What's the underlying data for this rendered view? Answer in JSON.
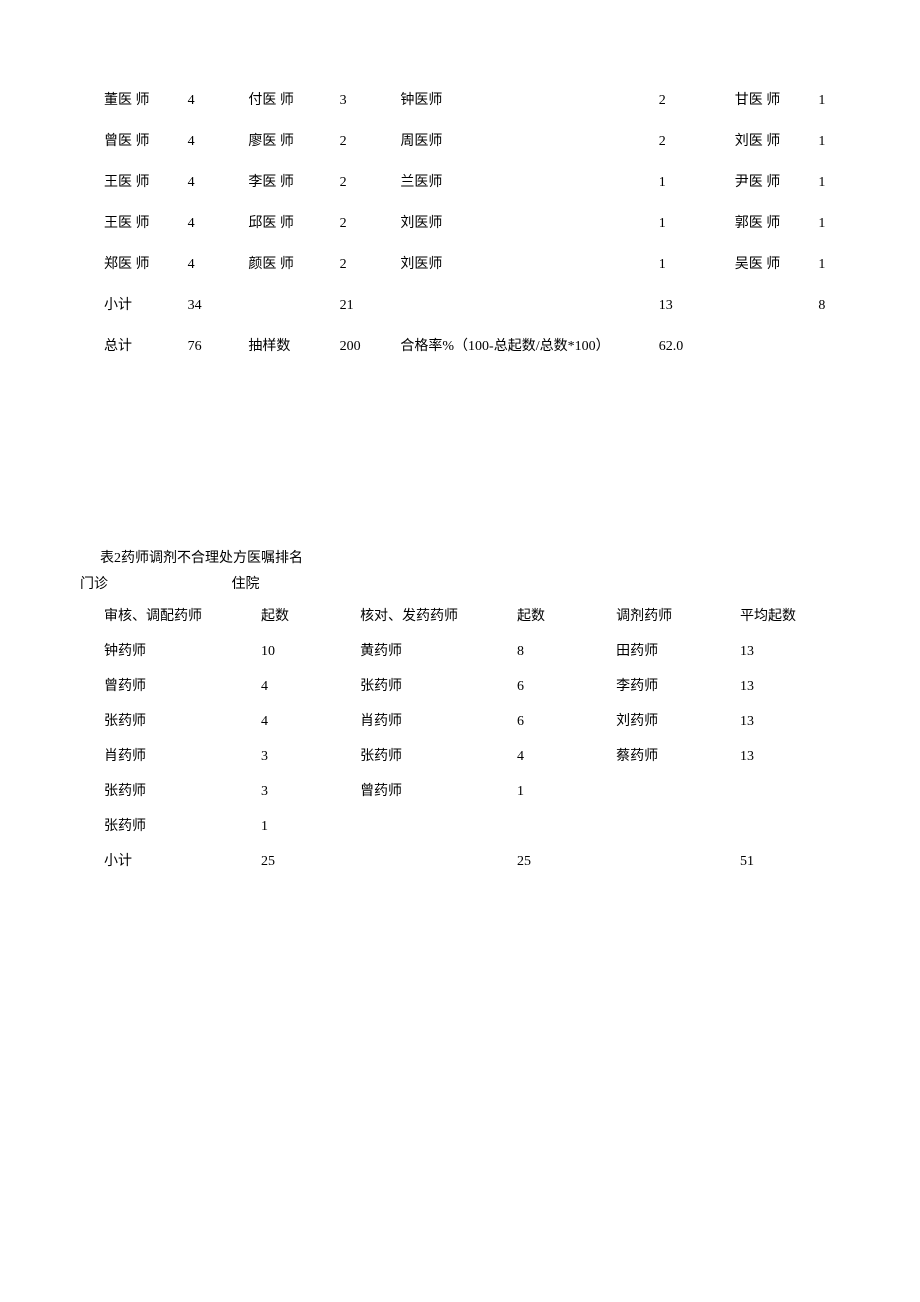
{
  "table1": {
    "rows": [
      [
        "董医 师",
        "4",
        "付医 师",
        "3",
        "钟医师",
        "2",
        "甘医 师",
        "1"
      ],
      [
        "曾医 师",
        "4",
        "廖医 师",
        "2",
        "周医师",
        "2",
        "刘医 师",
        "1"
      ],
      [
        "王医 师",
        "4",
        "李医 师",
        "2",
        "兰医师",
        "1",
        "尹医 师",
        "1"
      ],
      [
        "王医 师",
        "4",
        "邱医 师",
        "2",
        "刘医师",
        "1",
        "郭医 师",
        "1"
      ],
      [
        "郑医 师",
        "4",
        "颜医 师",
        "2",
        "刘医师",
        "1",
        "吴医 师",
        "1"
      ],
      [
        "小计",
        "34",
        "",
        "21",
        "",
        "13",
        "",
        "8"
      ]
    ],
    "total_row": {
      "label": "总计",
      "total": "76",
      "sample_label": "抽样数",
      "sample": "200",
      "rate_label": "合格率%（100-总起数/总数*100）",
      "rate": "62.0"
    }
  },
  "table2": {
    "caption": "表2药师调剂不合理处方医嘱排名",
    "header_groups": {
      "left": "门诊",
      "right": "住院"
    },
    "columns": [
      "审核、调配药师",
      "起数",
      "核对、发药药师",
      "起数",
      "调剂药师",
      "平均起数"
    ],
    "rows": [
      [
        "钟药师",
        "10",
        "黄药师",
        "8",
        "田药师",
        "13"
      ],
      [
        "曾药师",
        "4",
        "张药师",
        "6",
        "李药师",
        "13"
      ],
      [
        "张药师",
        "4",
        "肖药师",
        "6",
        "刘药师",
        "13"
      ],
      [
        "肖药师",
        "3",
        "张药师",
        "4",
        "蔡药师",
        "13"
      ],
      [
        "张药师",
        "3",
        "曾药师",
        "1",
        "",
        ""
      ],
      [
        "张药师",
        "1",
        "",
        "",
        "",
        ""
      ],
      [
        "小计",
        "25",
        "",
        "25",
        "",
        "51"
      ]
    ]
  },
  "style": {
    "bg": "#ffffff",
    "text": "#000000",
    "font_family": "SimSun",
    "font_size_pt": 10.5
  }
}
